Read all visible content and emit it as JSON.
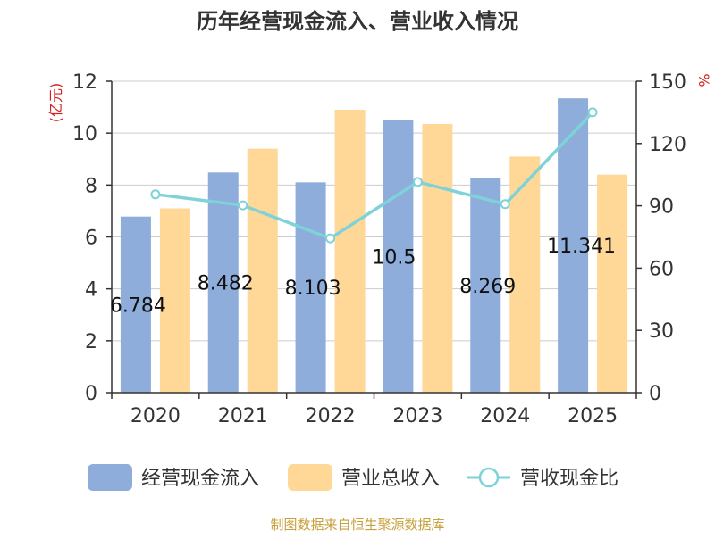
{
  "chart_data": {
    "type": "bar",
    "title": "历年经营现金流入、营业收入情况",
    "left_axis_unit": "(亿元)",
    "right_axis_unit": "%",
    "categories": [
      "2020",
      "2021",
      "2022",
      "2023",
      "2024",
      "2025"
    ],
    "left_ylim": [
      0,
      12
    ],
    "left_ticks": [
      0,
      2,
      4,
      6,
      8,
      10,
      12
    ],
    "right_ylim": [
      0,
      150
    ],
    "right_ticks": [
      0,
      30,
      60,
      90,
      120,
      150
    ],
    "grid": true,
    "series": [
      {
        "name": "经营现金流入",
        "type": "bar",
        "axis": "left",
        "color": "#8EADDB",
        "values": [
          6.784,
          8.482,
          8.103,
          10.5,
          8.269,
          11.341
        ],
        "data_labels": [
          "6.784",
          "8.482",
          "8.103",
          "10.5",
          "8.269",
          "11.341"
        ]
      },
      {
        "name": "营业总收入",
        "type": "bar",
        "axis": "left",
        "color": "#FFD898",
        "values": [
          7.1,
          9.4,
          10.9,
          10.35,
          9.1,
          8.4
        ]
      },
      {
        "name": "营收现金比",
        "type": "line",
        "axis": "right",
        "color": "#7ED3D8",
        "values": [
          95.5,
          90.2,
          74.3,
          101.5,
          90.8,
          135.0
        ]
      }
    ],
    "legend_position": "bottom"
  },
  "colors": {
    "title": "#333333",
    "axis": "#333333",
    "unit": "#D61F1F",
    "grid": "#CCCCCC",
    "source": "#C8A03C"
  },
  "footer": {
    "source_text": "制图数据来自恒生聚源数据库"
  }
}
